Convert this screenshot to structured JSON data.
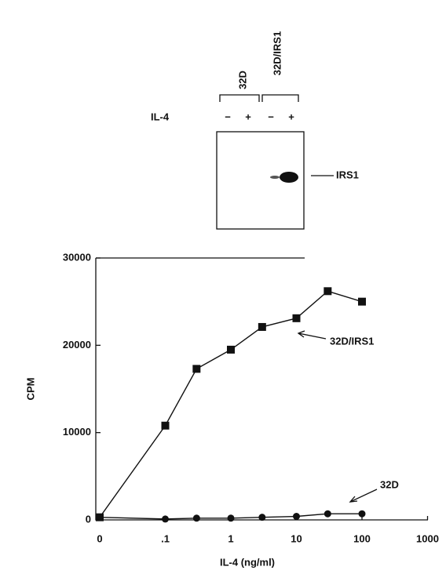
{
  "blot": {
    "lanes": [
      "32D",
      "32D/IRS1"
    ],
    "treatment": "IL-4",
    "signs": [
      "−",
      "+",
      "−",
      "+"
    ],
    "band": "IRS1"
  },
  "chart_data": {
    "type": "line",
    "x_label": "IL-4 (ng/ml)",
    "y_label": "CPM",
    "xscale": "log",
    "x": [
      0,
      0.1,
      0.3,
      1,
      3,
      10,
      30,
      100
    ],
    "series": [
      {
        "name": "32D/IRS1",
        "color": "#111111",
        "marker": "square",
        "values": [
          300,
          10800,
          17300,
          19500,
          22100,
          23100,
          26200,
          25000
        ]
      },
      {
        "name": "32D",
        "color": "#111111",
        "marker": "circle",
        "values": [
          300,
          100,
          200,
          200,
          300,
          400,
          700,
          700
        ]
      }
    ],
    "xlim": [
      0,
      1000
    ],
    "xticks": [
      0,
      {
        "value": 0.1,
        "label": ".1"
      },
      1,
      10,
      100,
      1000
    ],
    "ylim": [
      0,
      30000
    ],
    "yticks": [
      0,
      10000,
      20000,
      30000
    ]
  }
}
